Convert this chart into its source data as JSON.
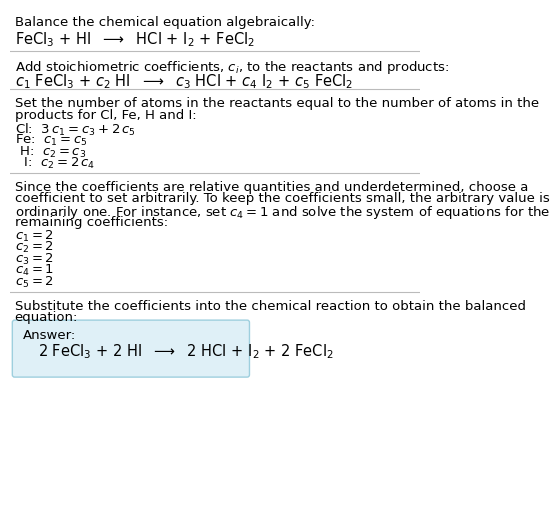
{
  "title": "Balance the chemical equation algebraically:",
  "line1_parts": [
    {
      "text": "FeCl",
      "style": "normal",
      "size": 11
    },
    {
      "text": "3",
      "style": "sub",
      "size": 8
    },
    {
      "text": " + HI  ⟶  HCl + I",
      "style": "normal",
      "size": 11
    },
    {
      "text": "2",
      "style": "sub",
      "size": 8
    },
    {
      "text": " + FeCl",
      "style": "normal",
      "size": 11
    },
    {
      "text": "2",
      "style": "sub",
      "size": 8
    }
  ],
  "section2_intro": "Add stoichiometric coefficients, $c_i$, to the reactants and products:",
  "section3_intro_l1": "Set the number of atoms in the reactants equal to the number of atoms in the",
  "section3_intro_l2": "products for Cl, Fe, H and I:",
  "section4_intro_l1": "Since the coefficients are relative quantities and underdetermined, choose a",
  "section4_intro_l2": "coefficient to set arbitrarily. To keep the coefficients small, the arbitrary value is",
  "section4_intro_l3": "ordinarily one. For instance, set $c_4 = 1$ and solve the system of equations for the",
  "section4_intro_l4": "remaining coefficients:",
  "section5_intro_l1": "Substitute the coefficients into the chemical reaction to obtain the balanced",
  "section5_intro_l2": "equation:",
  "answer_label": "Answer:",
  "bg_color": "#ffffff",
  "text_color": "#000000",
  "answer_box_facecolor": "#dff0f7",
  "answer_box_edgecolor": "#9ecfde",
  "separator_color": "#bbbbbb",
  "fs": 9.5,
  "fs_eq": 10.5
}
